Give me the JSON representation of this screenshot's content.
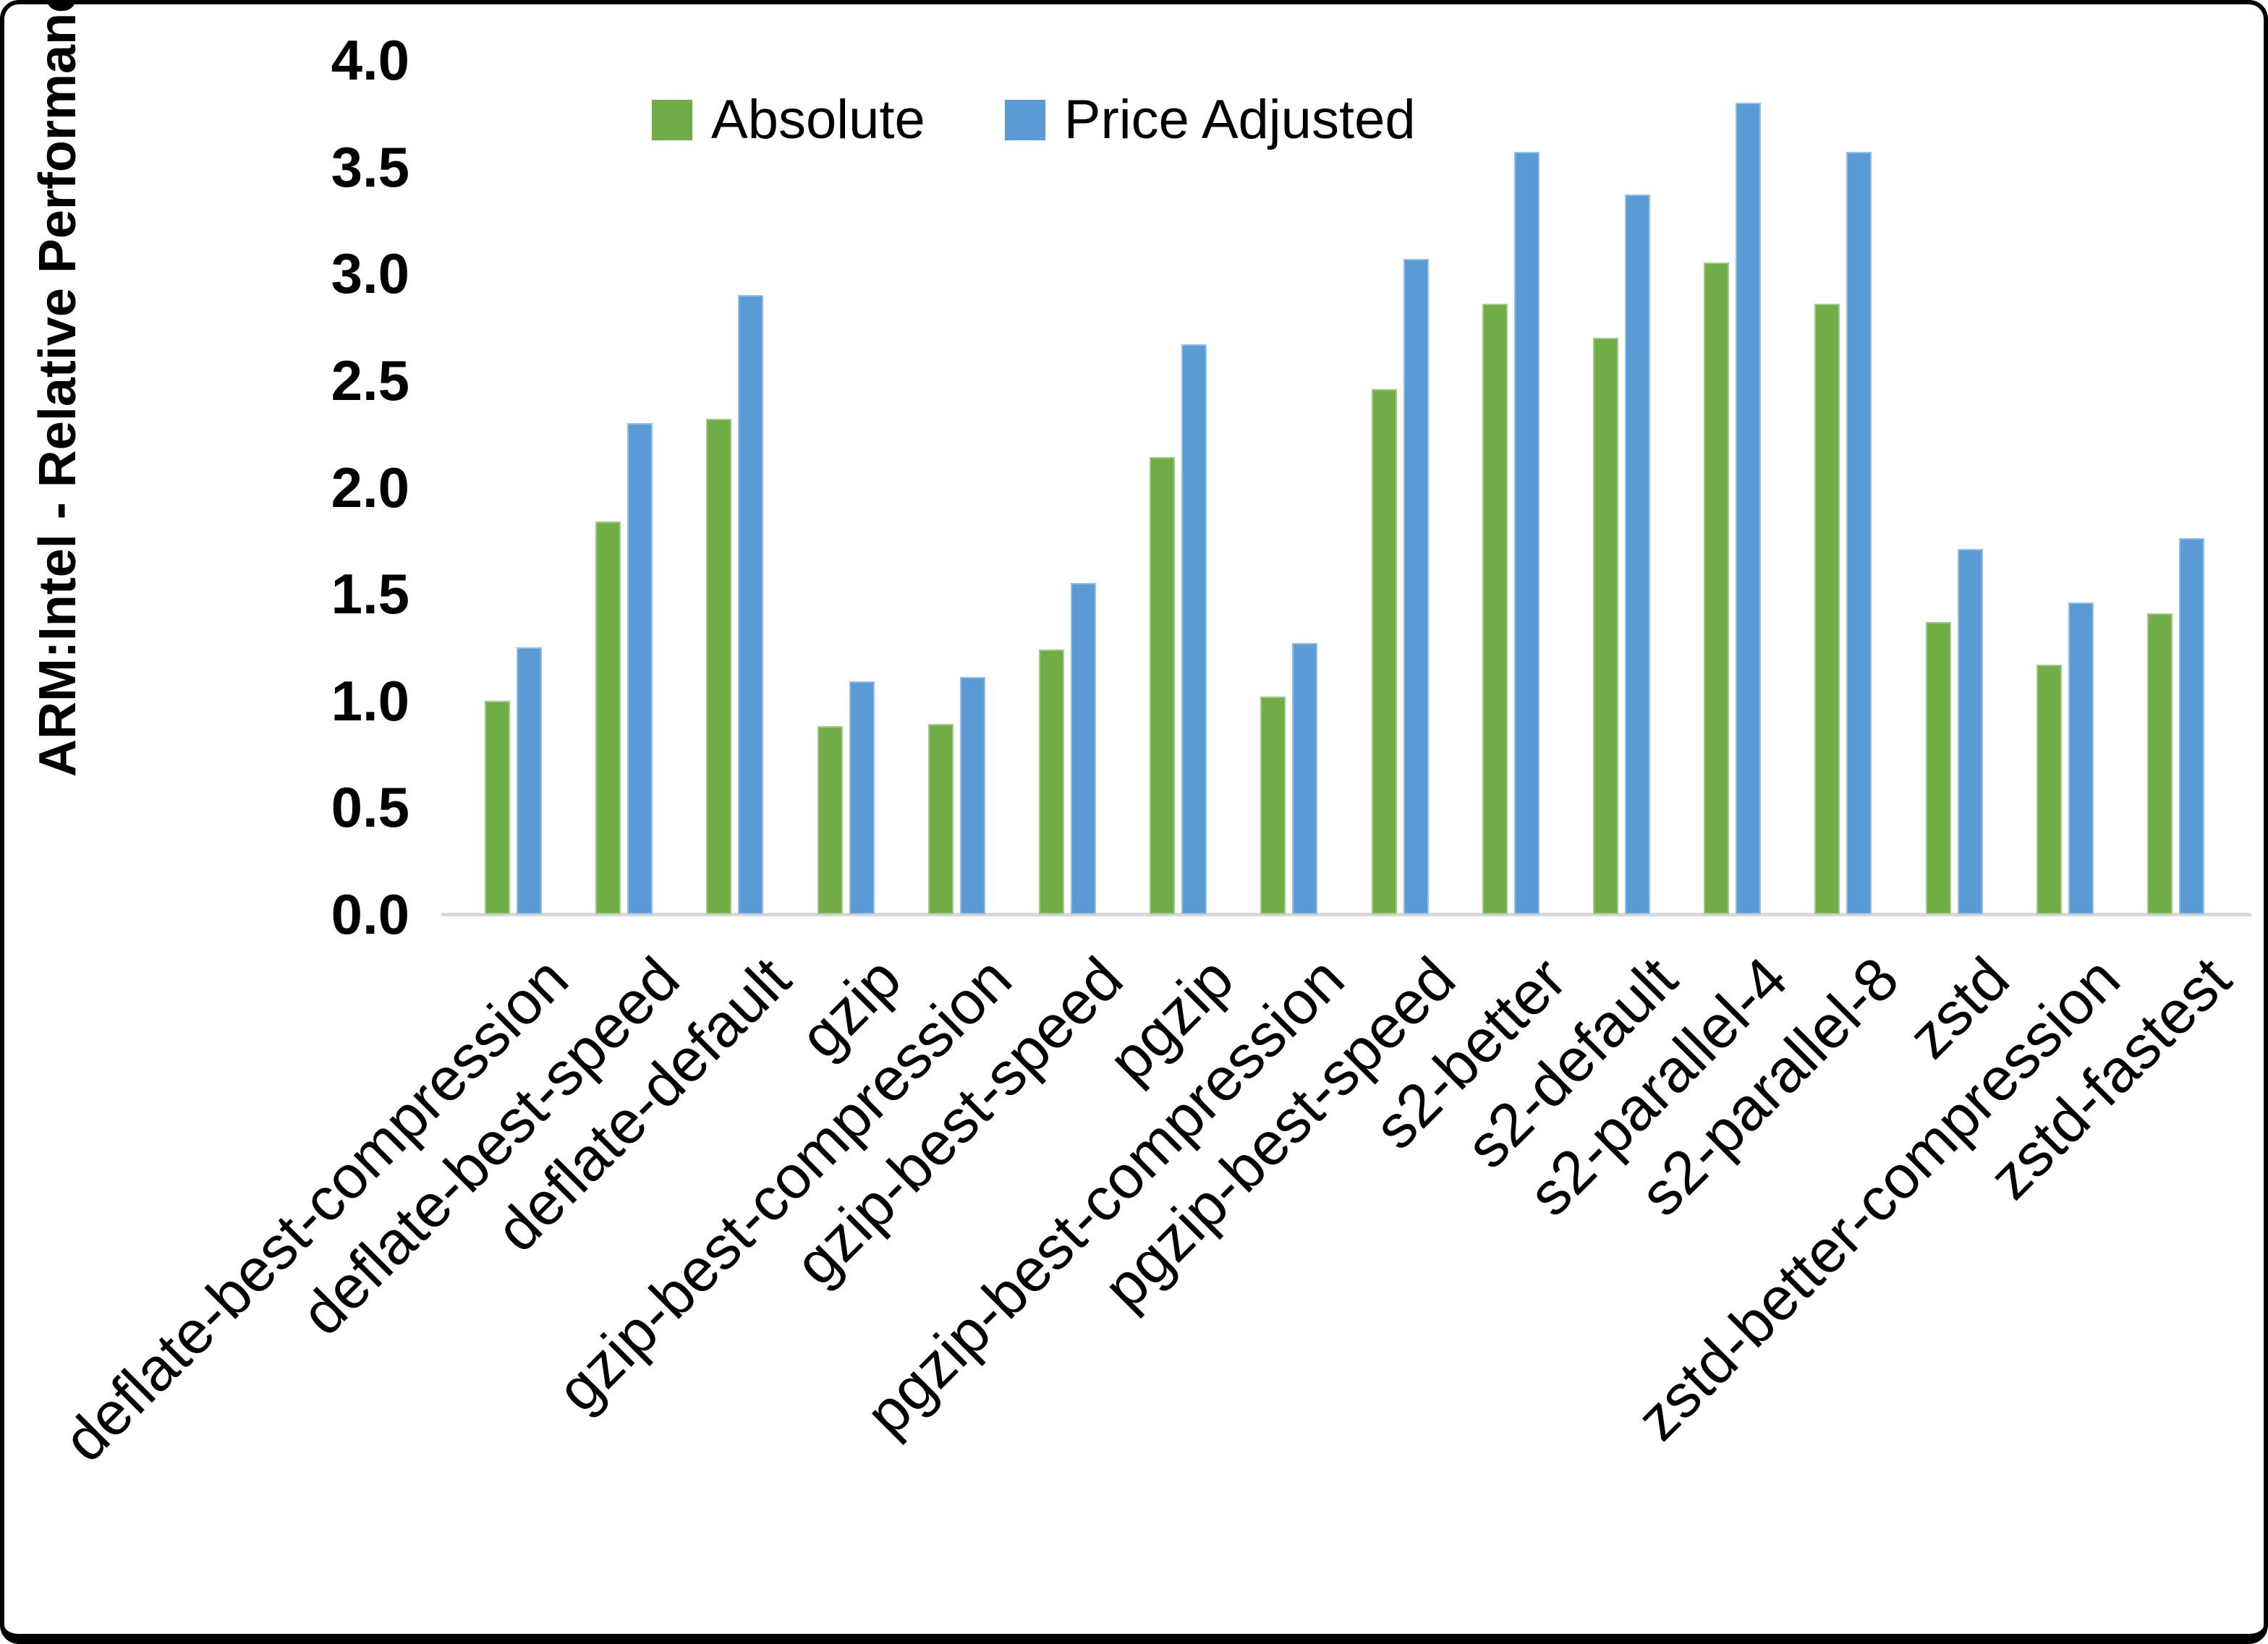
{
  "colors": {
    "absolute_green": "#70AD47",
    "price_adjusted_blue": "#5B9BD5",
    "axis_baseline_gray": "#D9D9D9",
    "text_black": "#000000"
  },
  "y_axis": {
    "title": "ARM:Intel - Relative Performance",
    "tick_labels": [
      "0.0",
      "0.5",
      "1.0",
      "1.5",
      "2.0",
      "2.5",
      "3.0",
      "3.5",
      "4.0"
    ]
  },
  "legend": {
    "absolute_label": "Absolute",
    "price_adjusted_label": "Price Adjusted"
  },
  "chart_data": {
    "type": "bar",
    "title": "",
    "xlabel": "",
    "ylabel": "ARM:Intel - Relative Performance",
    "ylim": [
      0.0,
      4.0
    ],
    "ytick_step": 0.5,
    "grid": false,
    "legend_position": "top-center",
    "categories": [
      "deflate-best-compression",
      "deflate-best-speed",
      "deflate-default",
      "gzip",
      "gzip-best-compression",
      "gzip-best-speed",
      "pgzip",
      "pgzip-best-compression",
      "pgzip-best-speed",
      "s2-better",
      "s2-default",
      "s2-parallel-4",
      "s2-parallel-8",
      "zstd",
      "zstd-better-compression",
      "zstd-fastest"
    ],
    "series": [
      {
        "name": "Absolute",
        "color": "#70AD47",
        "values": [
          1.0,
          1.84,
          2.32,
          0.88,
          0.89,
          1.24,
          2.14,
          1.02,
          2.46,
          2.86,
          2.7,
          3.05,
          2.86,
          1.37,
          1.17,
          1.41
        ]
      },
      {
        "name": "Price Adjusted",
        "color": "#5B9BD5",
        "values": [
          1.25,
          2.3,
          2.9,
          1.09,
          1.11,
          1.55,
          2.67,
          1.27,
          3.07,
          3.57,
          3.37,
          3.8,
          3.57,
          1.71,
          1.46,
          1.76
        ]
      }
    ]
  }
}
